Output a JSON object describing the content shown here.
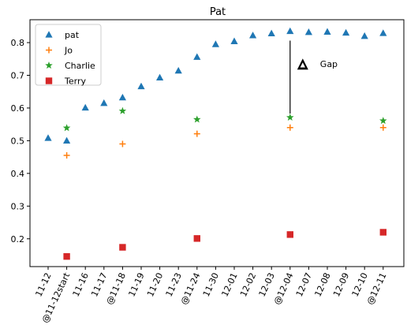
{
  "chart_data": {
    "type": "scatter",
    "title": "Pat",
    "xlabel": "",
    "ylabel": "",
    "categories": [
      "11-12",
      "@11-12start",
      "11-16",
      "11-17",
      "@11-18",
      "11-19",
      "11-20",
      "11-23",
      "@11-24",
      "11-30",
      "12-01",
      "12-02",
      "12-03",
      "@12-04",
      "12-07",
      "12-08",
      "12-09",
      "12-10",
      "@12-11"
    ],
    "ylim": [
      0.115,
      0.87
    ],
    "yticks": [
      "0.2",
      "0.3",
      "0.4",
      "0.5",
      "0.6",
      "0.7",
      "0.8"
    ],
    "grid": false,
    "legend_position": "top-left",
    "series": [
      {
        "name": "pat",
        "marker": "triangle",
        "color": "#1f77b4",
        "values": [
          0.508,
          0.5,
          0.601,
          0.615,
          0.632,
          0.666,
          0.693,
          0.714,
          0.756,
          0.795,
          0.804,
          0.822,
          0.828,
          0.835,
          0.832,
          0.833,
          0.83,
          0.82,
          0.829
        ]
      },
      {
        "name": "Jo",
        "marker": "plus",
        "color": "#ff7f0e",
        "values": [
          null,
          0.455,
          null,
          null,
          0.49,
          null,
          null,
          null,
          0.521,
          null,
          null,
          null,
          null,
          0.54,
          null,
          null,
          null,
          null,
          0.54
        ]
      },
      {
        "name": "Charlie",
        "marker": "star",
        "color": "#2ca02c",
        "values": [
          null,
          0.539,
          null,
          null,
          0.591,
          null,
          null,
          null,
          0.565,
          null,
          null,
          null,
          null,
          0.571,
          null,
          null,
          null,
          null,
          0.561
        ]
      },
      {
        "name": "Terry",
        "marker": "square",
        "color": "#d62728",
        "values": [
          null,
          0.146,
          null,
          null,
          0.174,
          null,
          null,
          null,
          0.201,
          null,
          null,
          null,
          null,
          0.213,
          null,
          null,
          null,
          null,
          0.22
        ]
      }
    ],
    "annotations": [
      {
        "label": "Gap",
        "category": "@12-04",
        "y_from": 0.571,
        "y_to": 0.835
      }
    ]
  }
}
